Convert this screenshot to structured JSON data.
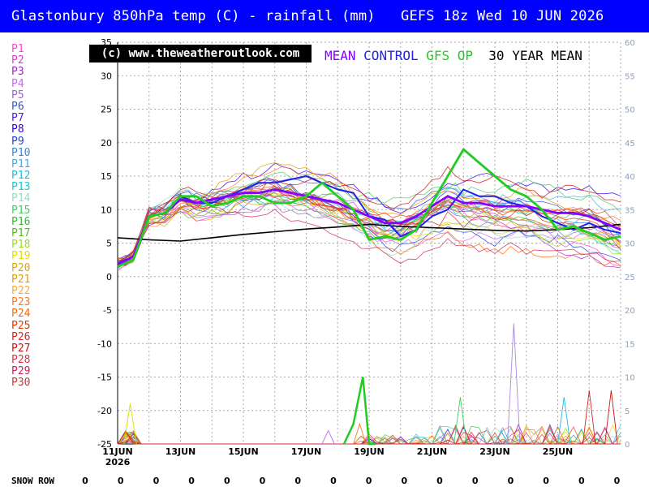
{
  "header": {
    "title": "Glastonbury 850hPa temp (C) - rainfall (mm)   GEFS 18z Wed 10 JUN 2026"
  },
  "copyright": "(c) www.theweatheroutlook.com",
  "legend": [
    {
      "label": "MEAN",
      "color": "#8800ff"
    },
    {
      "label": "CONTROL",
      "color": "#2222ee"
    },
    {
      "label": "GFS OP",
      "color": "#22cc22"
    },
    {
      "label": "30 YEAR MEAN",
      "color": "#000000"
    }
  ],
  "members": [
    {
      "label": "P1",
      "color": "#ff44cc"
    },
    {
      "label": "P2",
      "color": "#ee33dd"
    },
    {
      "label": "P3",
      "color": "#aa22cc"
    },
    {
      "label": "P4",
      "color": "#cc66ee"
    },
    {
      "label": "P5",
      "color": "#9966cc"
    },
    {
      "label": "P6",
      "color": "#3355cc"
    },
    {
      "label": "P7",
      "color": "#4422dd"
    },
    {
      "label": "P8",
      "color": "#3300ee"
    },
    {
      "label": "P9",
      "color": "#2244dd"
    },
    {
      "label": "P10",
      "color": "#3388dd"
    },
    {
      "label": "P11",
      "color": "#44aadd"
    },
    {
      "label": "P12",
      "color": "#22bbdd"
    },
    {
      "label": "P13",
      "color": "#11cccc"
    },
    {
      "label": "P14",
      "color": "#99ddbb"
    },
    {
      "label": "P15",
      "color": "#44cc66"
    },
    {
      "label": "P16",
      "color": "#33bb33"
    },
    {
      "label": "P17",
      "color": "#55bb22"
    },
    {
      "label": "P18",
      "color": "#99dd22"
    },
    {
      "label": "P19",
      "color": "#dddd00"
    },
    {
      "label": "P20",
      "color": "#ddaa00"
    },
    {
      "label": "P21",
      "color": "#ee9900"
    },
    {
      "label": "P22",
      "color": "#ffaa33"
    },
    {
      "label": "P23",
      "color": "#ff7722"
    },
    {
      "label": "P24",
      "color": "#ff6600"
    },
    {
      "label": "P25",
      "color": "#ee3300"
    },
    {
      "label": "P26",
      "color": "#dd2222"
    },
    {
      "label": "P27",
      "color": "#cc1111"
    },
    {
      "label": "P28",
      "color": "#dd3344"
    },
    {
      "label": "P29",
      "color": "#cc2255"
    },
    {
      "label": "P30",
      "color": "#cc3333"
    }
  ],
  "snow_row": {
    "label": "SNOW ROW",
    "values": [
      0,
      0,
      0,
      0,
      0,
      0,
      0,
      0,
      0,
      0,
      0,
      0,
      0,
      0,
      0,
      0
    ]
  },
  "chart_data": {
    "type": "line",
    "left_axis": {
      "range": [
        -25,
        35
      ],
      "ticks": [
        35,
        30,
        25,
        20,
        15,
        10,
        5,
        0,
        -5,
        -10,
        -15,
        -20,
        -25
      ]
    },
    "right_axis": {
      "range": [
        0,
        60
      ],
      "ticks": [
        60,
        55,
        50,
        45,
        40,
        35,
        30,
        25,
        20,
        15,
        10,
        5,
        0
      ]
    },
    "x_ticks": [
      "11JUN",
      "13JUN",
      "15JUN",
      "17JUN",
      "19JUN",
      "21JUN",
      "23JUN",
      "25JUN"
    ],
    "x_subtitle": "2026",
    "grid": true,
    "mean": {
      "name": "MEAN",
      "color": "#8800ff",
      "x": [
        0,
        0.5,
        1,
        1.5,
        2,
        2.5,
        3,
        3.5,
        4,
        4.5,
        5,
        5.5,
        6,
        6.5,
        7,
        7.5,
        8,
        8.5,
        9,
        9.5,
        10,
        10.5,
        11,
        11.5,
        12,
        12.5,
        13,
        13.5,
        14,
        14.5,
        15,
        15.5,
        16
      ],
      "y": [
        1.8,
        3,
        9,
        9.5,
        11.5,
        11,
        11.5,
        12,
        12.5,
        12.5,
        13,
        12.5,
        12,
        11.5,
        11,
        10,
        9,
        8,
        8,
        9,
        10.5,
        12,
        11,
        11,
        10.5,
        10.5,
        10.5,
        10,
        9.5,
        9.5,
        9,
        8,
        7
      ]
    },
    "control": {
      "name": "CONTROL",
      "color": "#2222ee",
      "x": [
        0,
        0.5,
        1,
        1.5,
        2,
        2.5,
        3,
        3.5,
        4,
        4.5,
        5,
        5.5,
        6,
        6.5,
        7,
        7.5,
        8,
        8.5,
        9,
        9.5,
        10,
        10.5,
        11,
        11.5,
        12,
        12.5,
        13,
        13.5,
        14,
        14.5,
        15,
        15.5,
        16
      ],
      "y": [
        2,
        3,
        9,
        9.5,
        12,
        11,
        11,
        12,
        13,
        14,
        14,
        14.5,
        15,
        14,
        13,
        12.5,
        9,
        8.5,
        6,
        7,
        9,
        10,
        13,
        12,
        12,
        11,
        10.5,
        9,
        8,
        7,
        8,
        7,
        6.5
      ]
    },
    "gfs_op": {
      "name": "GFS OP",
      "color": "#22cc22",
      "x": [
        0,
        0.5,
        1,
        1.5,
        2,
        2.5,
        3,
        3.5,
        4,
        4.5,
        5,
        5.5,
        6,
        6.5,
        7,
        7.5,
        8,
        8.5,
        9,
        9.5,
        10,
        10.5,
        11,
        11.5,
        12,
        12.5,
        13,
        13.5,
        14,
        14.5,
        15,
        15.5,
        16
      ],
      "y": [
        1.5,
        2.5,
        9,
        9.5,
        12,
        12,
        10.5,
        11,
        12,
        12,
        11,
        11,
        12,
        14,
        12,
        10,
        5.5,
        6,
        5.5,
        7,
        11,
        15,
        19,
        17,
        15,
        13,
        12,
        10,
        7,
        7.5,
        6.5,
        5.5,
        6
      ]
    },
    "thirty_year_mean": {
      "name": "30 YEAR MEAN",
      "color": "#000000",
      "x": [
        0,
        1,
        2,
        3,
        4,
        5,
        6,
        7,
        8,
        9,
        10,
        11,
        12,
        13,
        14,
        15,
        16
      ],
      "y": [
        5.8,
        5.5,
        5.3,
        5.8,
        6.3,
        6.7,
        7.1,
        7.4,
        7.8,
        7.5,
        7.3,
        7.1,
        6.9,
        6.8,
        7,
        7.3,
        7.8
      ]
    },
    "rainfall_gfs_op": {
      "unit": "mm",
      "x": [
        7.2,
        7.5,
        7.8,
        8,
        8.2
      ],
      "y": [
        0,
        3,
        10,
        0,
        0
      ]
    },
    "rainfall_peaks": {
      "unit": "mm",
      "x": [
        0.4,
        6.7,
        7.7,
        10.9,
        12.2,
        12.6,
        14.2,
        15,
        15.7
      ],
      "y": [
        6,
        2,
        3,
        7,
        2,
        18,
        7,
        8,
        8
      ]
    }
  }
}
